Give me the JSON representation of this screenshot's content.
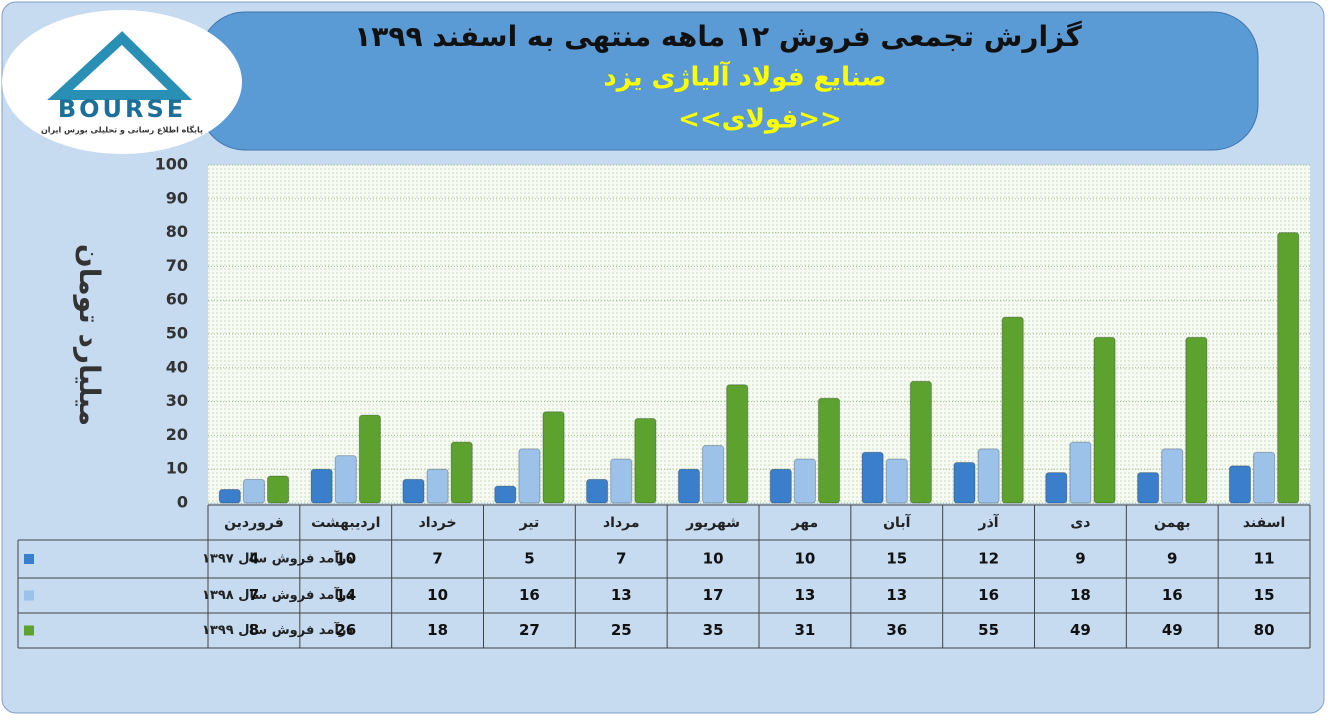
{
  "chart_data": {
    "type": "bar",
    "title": "گزارش تجمعی فروش ۱۲ ماهه منتهی به اسفند ۱۳۹۹",
    "subtitle": "صنایع فولاد آلیاژی یزد",
    "subtitle2": "<<فولای>>",
    "y_label": "میلیارد تومان",
    "logo": {
      "text": "BOURSE",
      "tagline": "پایگاه اطلاع رسانی و تحلیلی بورس ایران"
    },
    "categories": [
      "فروردین",
      "اردیبهشت",
      "خرداد",
      "تیر",
      "مرداد",
      "شهریور",
      "مهر",
      "آبان",
      "آذر",
      "دی",
      "بهمن",
      "اسفند"
    ],
    "series": [
      {
        "name": "درآمد فروش سال ۱۳۹۷",
        "color": "#3b7fcc",
        "values": [
          4,
          10,
          7,
          5,
          7,
          10,
          10,
          15,
          12,
          9,
          9,
          11
        ]
      },
      {
        "name": "درآمد فروش سال ۱۳۹۸",
        "color": "#9cc2ea",
        "values": [
          7,
          14,
          10,
          16,
          13,
          17,
          13,
          13,
          16,
          18,
          16,
          15
        ]
      },
      {
        "name": "درآمد فروش سال ۱۳۹۹",
        "color": "#5da12f",
        "values": [
          8,
          26,
          18,
          27,
          25,
          35,
          31,
          36,
          55,
          49,
          49,
          80
        ]
      }
    ],
    "ylim": [
      0,
      100
    ],
    "yticks": [
      0,
      10,
      20,
      30,
      40,
      50,
      60,
      70,
      80,
      90,
      100
    ],
    "grid": true
  }
}
